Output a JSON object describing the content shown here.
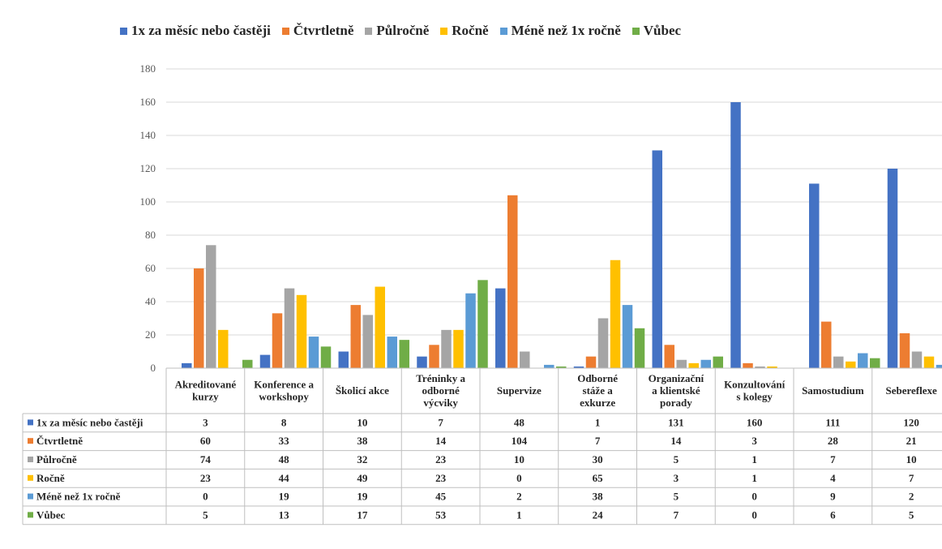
{
  "chart_data": {
    "type": "bar",
    "ylim": [
      0,
      180
    ],
    "yticks": [
      0,
      20,
      40,
      60,
      80,
      100,
      120,
      140,
      160,
      180
    ],
    "grid": true,
    "legend_position": "top",
    "categories": [
      [
        "Akreditované",
        "kurzy"
      ],
      [
        "Konference a",
        "workshopy"
      ],
      [
        "Školicí akce"
      ],
      [
        "Tréninky a",
        "odborné",
        "výcviky"
      ],
      [
        "Supervize"
      ],
      [
        "Odborné",
        "stáže a",
        "exkurze"
      ],
      [
        "Organizační",
        "a klientské",
        "porady"
      ],
      [
        "Konzultování",
        "s kolegy"
      ],
      [
        "Samostudium"
      ],
      [
        "Sebereflexe"
      ]
    ],
    "series": [
      {
        "name": "1x za měsíc nebo častěji",
        "color": "#4472C4",
        "values": [
          3,
          8,
          10,
          7,
          48,
          1,
          131,
          160,
          111,
          120
        ]
      },
      {
        "name": "Čtvrtletně",
        "color": "#ED7D31",
        "values": [
          60,
          33,
          38,
          14,
          104,
          7,
          14,
          3,
          28,
          21
        ]
      },
      {
        "name": "Půlročně",
        "color": "#A5A5A5",
        "values": [
          74,
          48,
          32,
          23,
          10,
          30,
          5,
          1,
          7,
          10
        ]
      },
      {
        "name": "Ročně",
        "color": "#FFC000",
        "values": [
          23,
          44,
          49,
          23,
          0,
          65,
          3,
          1,
          4,
          7
        ]
      },
      {
        "name": "Méně než 1x ročně",
        "color": "#5B9BD5",
        "values": [
          0,
          19,
          19,
          45,
          2,
          38,
          5,
          0,
          9,
          2
        ]
      },
      {
        "name": "Vůbec",
        "color": "#70AD47",
        "values": [
          5,
          13,
          17,
          53,
          1,
          24,
          7,
          0,
          6,
          5
        ]
      }
    ]
  }
}
